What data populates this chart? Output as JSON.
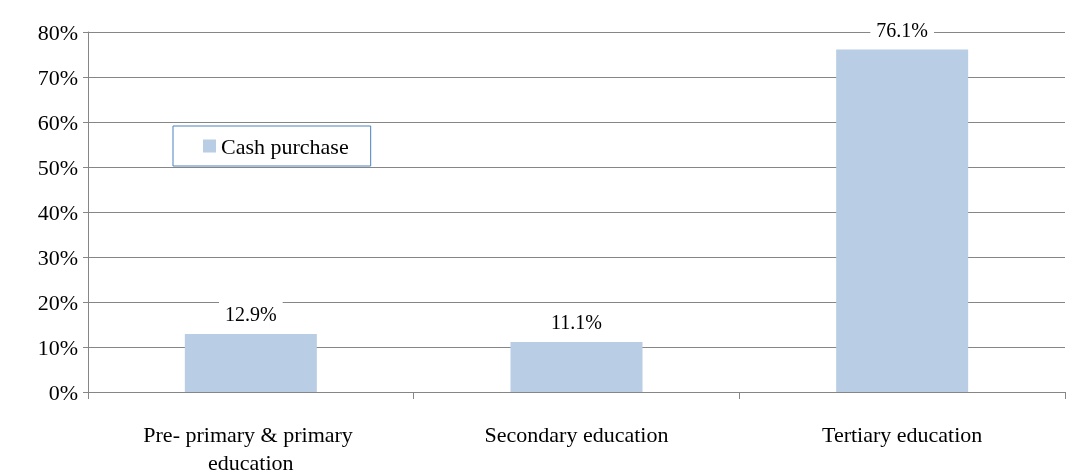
{
  "chart_data": {
    "type": "bar",
    "categories": [
      "Pre- primary & primary education",
      "Secondary education",
      "Tertiary education"
    ],
    "series": [
      {
        "name": "Cash purchase",
        "color": "#b9cde5",
        "values": [
          12.9,
          11.1,
          76.1
        ],
        "value_labels": [
          "12.9%",
          "11.1%",
          "76.1%"
        ]
      }
    ],
    "ylim": [
      0,
      80
    ],
    "yticks": [
      {
        "value": 0,
        "label": "0%"
      },
      {
        "value": 10,
        "label": "10%"
      },
      {
        "value": 20,
        "label": "20%"
      },
      {
        "value": 30,
        "label": "30%"
      },
      {
        "value": 40,
        "label": "40%"
      },
      {
        "value": 50,
        "label": "50%"
      },
      {
        "value": 60,
        "label": "60%"
      },
      {
        "value": 70,
        "label": "70%"
      },
      {
        "value": 80,
        "label": "80%"
      }
    ],
    "grid": "y",
    "legend": "top left"
  }
}
